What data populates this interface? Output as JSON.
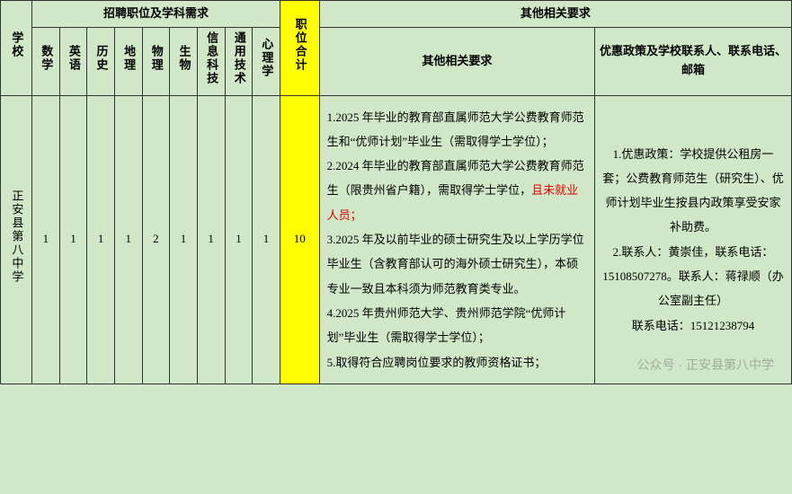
{
  "colors": {
    "background": "#d0e8c8",
    "border": "#333333",
    "highlight_bg": "#ffff00",
    "highlight_text": "#dd0000",
    "text": "#000000",
    "watermark": "rgba(100,100,100,0.45)"
  },
  "fonts": {
    "family": "SimSun",
    "header_size": 13,
    "body_size": 13,
    "line_height": 2.1
  },
  "headers": {
    "school": "学校",
    "group_positions": "招聘职位及学科需求",
    "group_other": "其他相关要求",
    "subjects": [
      "数学",
      "英语",
      "历史",
      "地理",
      "物理",
      "生物",
      "信息科技",
      "通用技术",
      "心理学"
    ],
    "total": "职位合计",
    "other_req": "其他相关要求",
    "contact": "优惠政策及学校联系人、联系电话、邮箱"
  },
  "row": {
    "school": "正安县第八中学",
    "counts": [
      "1",
      "1",
      "1",
      "1",
      "2",
      "1",
      "1",
      "1",
      "1"
    ],
    "total": "10",
    "requirements_lines": [
      "1.2025 年毕业的教育部直属师范大学公费教育师范生和“优师计划”毕业生（需取得学士学位）；",
      "2.2024 年毕业的教育部直属师范大学公费教育师范生（限贵州省户籍），需取得学士学位，",
      "且未就业人员；",
      "3.2025 年及以前毕业的硕士研究生及以上学历学位毕业生（含教育部认可的海外硕士研究生），本硕专业一致且本科须为师范教育类专业。",
      "4.2025 年贵州师范大学、贵州师范学院“优师计划”毕业生（需取得学士学位）；",
      "5.取得符合应聘岗位要求的教师资格证书；"
    ],
    "req_highlight_index": 2,
    "contact_lines": [
      "1.优惠政策：学校提供公租房一套；公费教育师范生（研究生）、优师计划毕业生按县内政策享受安家补助费。",
      "2.联系人：黄崇佳，联系电话：15108507278。联系人：蒋禄顺（办公室副主任）",
      "联系电话：15121238794"
    ]
  },
  "watermark": "公众号 · 正安县第八中学"
}
